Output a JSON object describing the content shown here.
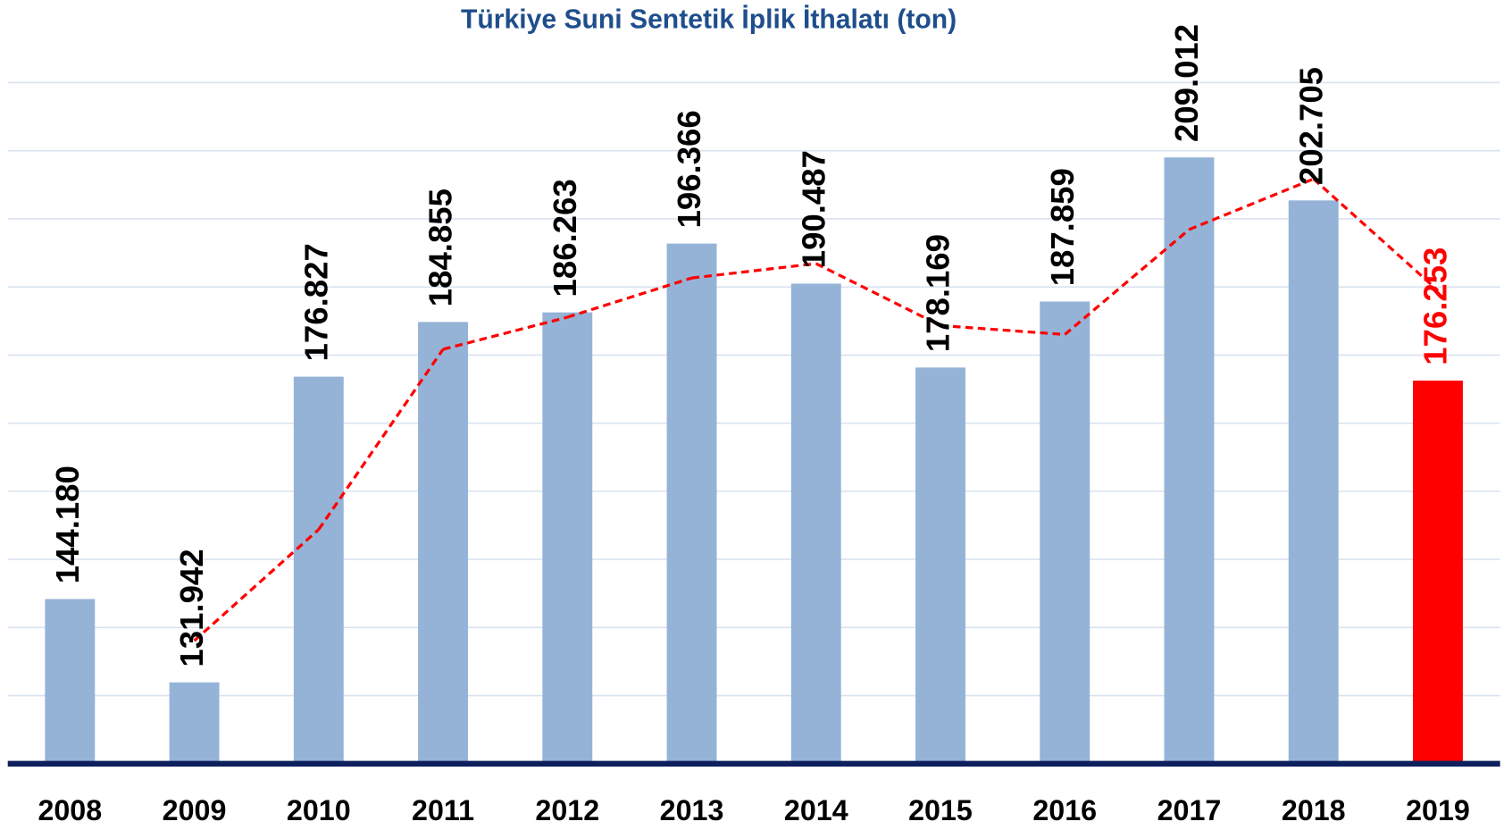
{
  "chart_data": {
    "type": "bar",
    "title": "Türkiye Suni Sentetik İplik İthalatı (ton)",
    "categories": [
      "2008",
      "2009",
      "2010",
      "2011",
      "2012",
      "2013",
      "2014",
      "2015",
      "2016",
      "2017",
      "2018",
      "2019"
    ],
    "values": [
      144180,
      131942,
      176827,
      184855,
      186263,
      196366,
      190487,
      178169,
      187859,
      209012,
      202705,
      176253
    ],
    "value_labels": [
      "144.180",
      "131.942",
      "176.827",
      "184.855",
      "186.263",
      "196.366",
      "190.487",
      "178.169",
      "187.859",
      "209.012",
      "202.705",
      "176.253"
    ],
    "colors": [
      "#95b3d7",
      "#95b3d7",
      "#95b3d7",
      "#95b3d7",
      "#95b3d7",
      "#95b3d7",
      "#95b3d7",
      "#95b3d7",
      "#95b3d7",
      "#95b3d7",
      "#95b3d7",
      "#ff0000"
    ],
    "label_colors": [
      "#000000",
      "#000000",
      "#000000",
      "#000000",
      "#000000",
      "#000000",
      "#000000",
      "#000000",
      "#000000",
      "#000000",
      "#000000",
      "#ff0000"
    ],
    "trendline": {
      "type": "moving_average",
      "period": 2,
      "color": "#ff0000"
    },
    "ylim": [
      120000,
      220000
    ],
    "yticks": [
      120000,
      130000,
      140000,
      150000,
      160000,
      170000,
      180000,
      190000,
      200000,
      210000,
      220000
    ],
    "grid": true
  }
}
